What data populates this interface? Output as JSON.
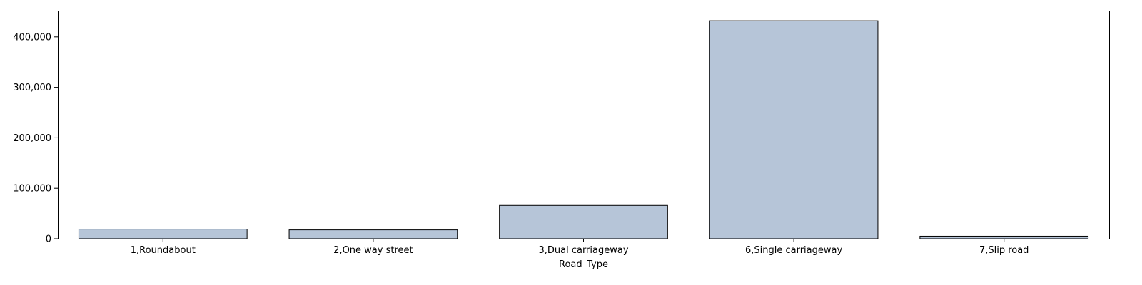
{
  "chart_data": {
    "type": "bar",
    "title": "",
    "xlabel": "Road_Type",
    "ylabel": "",
    "categories": [
      "1,Roundabout",
      "2,One way street",
      "3,Dual carriageway",
      "6,Single carriageway",
      "7,Slip road"
    ],
    "values": [
      19000,
      17500,
      66000,
      432000,
      5000
    ],
    "ylim": [
      0,
      452000
    ],
    "yticks": [
      0,
      100000,
      200000,
      300000,
      400000
    ],
    "ytick_labels": [
      "0",
      "100,000",
      "200,000",
      "300,000",
      "400,000"
    ],
    "grid": false,
    "legend": "none",
    "colors": {
      "bar_fill": "#b6c5d8",
      "bar_edge": "#000000",
      "axis": "#000000",
      "text": "#000000"
    }
  }
}
